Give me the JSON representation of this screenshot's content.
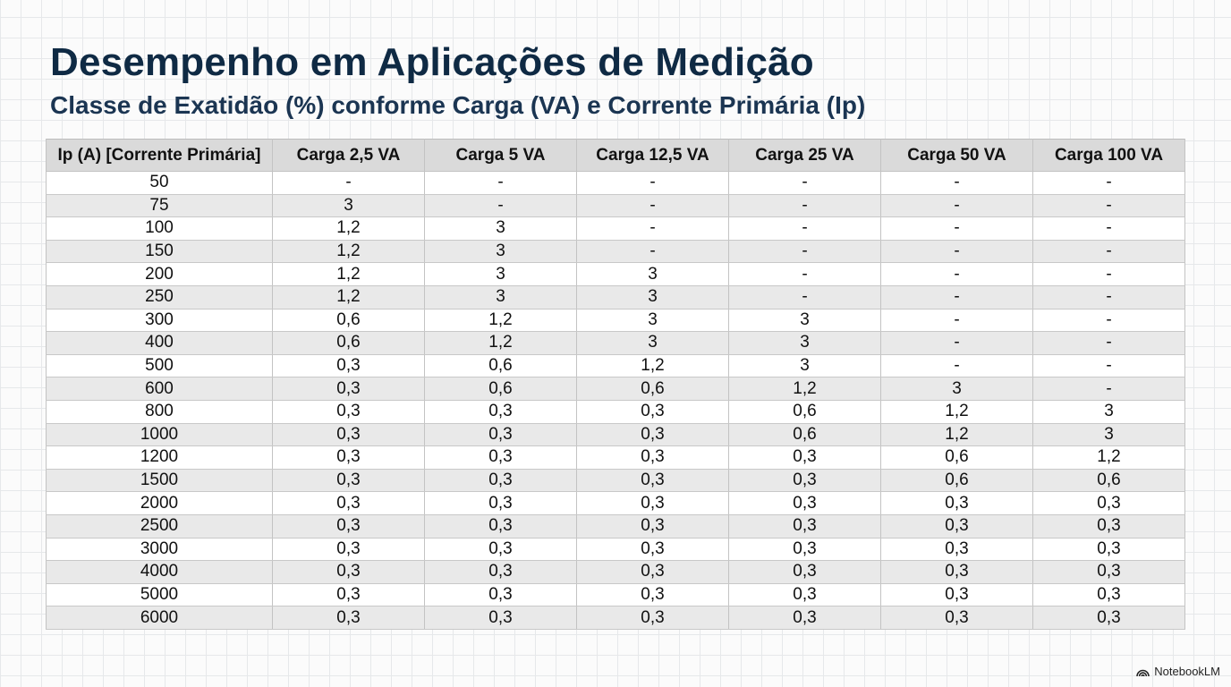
{
  "page": {
    "title": "Desempenho em Aplicações de Medição",
    "subtitle": "Classe de Exatidão (%) conforme Carga (VA) e Corrente Primária (Ip)"
  },
  "table": {
    "headers": [
      "Ip (A) [Corrente Primária]",
      "Carga 2,5 VA",
      "Carga 5 VA",
      "Carga 12,5 VA",
      "Carga 25 VA",
      "Carga 50 VA",
      "Carga 100 VA"
    ],
    "rows": [
      [
        "50",
        "-",
        "-",
        "-",
        "-",
        "-",
        "-"
      ],
      [
        "75",
        "3",
        "-",
        "-",
        "-",
        "-",
        "-"
      ],
      [
        "100",
        "1,2",
        "3",
        "-",
        "-",
        "-",
        "-"
      ],
      [
        "150",
        "1,2",
        "3",
        "-",
        "-",
        "-",
        "-"
      ],
      [
        "200",
        "1,2",
        "3",
        "3",
        "-",
        "-",
        "-"
      ],
      [
        "250",
        "1,2",
        "3",
        "3",
        "-",
        "-",
        "-"
      ],
      [
        "300",
        "0,6",
        "1,2",
        "3",
        "3",
        "-",
        "-"
      ],
      [
        "400",
        "0,6",
        "1,2",
        "3",
        "3",
        "-",
        "-"
      ],
      [
        "500",
        "0,3",
        "0,6",
        "1,2",
        "3",
        "-",
        "-"
      ],
      [
        "600",
        "0,3",
        "0,6",
        "0,6",
        "1,2",
        "3",
        "-"
      ],
      [
        "800",
        "0,3",
        "0,3",
        "0,3",
        "0,6",
        "1,2",
        "3"
      ],
      [
        "1000",
        "0,3",
        "0,3",
        "0,3",
        "0,6",
        "1,2",
        "3"
      ],
      [
        "1200",
        "0,3",
        "0,3",
        "0,3",
        "0,3",
        "0,6",
        "1,2"
      ],
      [
        "1500",
        "0,3",
        "0,3",
        "0,3",
        "0,3",
        "0,6",
        "0,6"
      ],
      [
        "2000",
        "0,3",
        "0,3",
        "0,3",
        "0,3",
        "0,3",
        "0,3"
      ],
      [
        "2500",
        "0,3",
        "0,3",
        "0,3",
        "0,3",
        "0,3",
        "0,3"
      ],
      [
        "3000",
        "0,3",
        "0,3",
        "0,3",
        "0,3",
        "0,3",
        "0,3"
      ],
      [
        "4000",
        "0,3",
        "0,3",
        "0,3",
        "0,3",
        "0,3",
        "0,3"
      ],
      [
        "5000",
        "0,3",
        "0,3",
        "0,3",
        "0,3",
        "0,3",
        "0,3"
      ],
      [
        "6000",
        "0,3",
        "0,3",
        "0,3",
        "0,3",
        "0,3",
        "0,3"
      ]
    ]
  },
  "footer": {
    "brand_icon": "notebooklm-logo-icon",
    "brand_label": "NotebookLM"
  },
  "colors": {
    "title": "#0f2a44",
    "header_bg": "#dadada",
    "row_alt_bg": "#e9e9e9"
  }
}
